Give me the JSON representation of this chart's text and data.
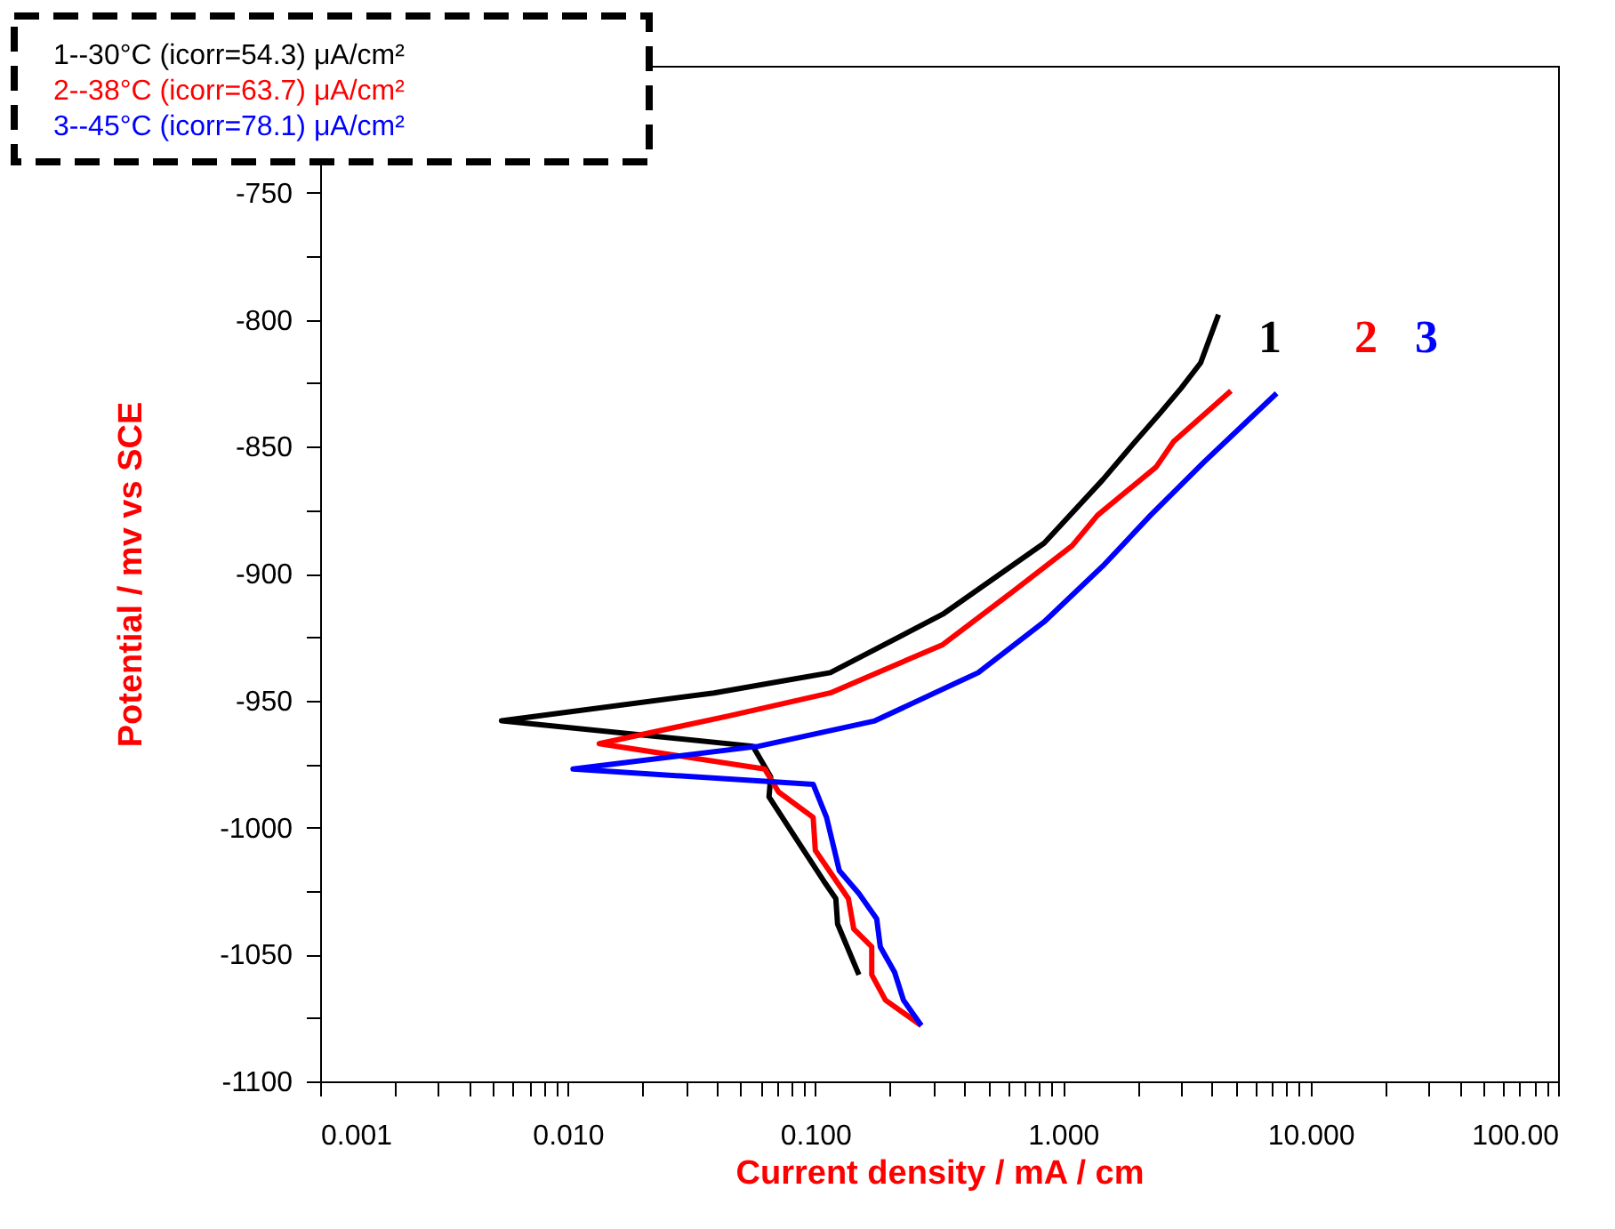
{
  "chart_data": {
    "type": "line",
    "xlabel": "Current density / mA / cm",
    "ylabel": "Potential / mv vs SCE",
    "log": "x",
    "legend": "top left",
    "marker": "none",
    "line_style": "solid",
    "grid": false,
    "xlim": [
      0.001,
      100
    ],
    "ylim": [
      -1100,
      -700
    ],
    "xticks": [
      {
        "value": 0.001,
        "label": "0.001"
      },
      {
        "value": 0.002,
        "label": null
      },
      {
        "value": 0.003,
        "label": null
      },
      {
        "value": 0.004,
        "label": null
      },
      {
        "value": 0.005,
        "label": null
      },
      {
        "value": 0.006,
        "label": null
      },
      {
        "value": 0.007,
        "label": null
      },
      {
        "value": 0.008,
        "label": null
      },
      {
        "value": 0.009,
        "label": null
      },
      {
        "value": 0.01,
        "label": "0.010"
      },
      {
        "value": 0.02,
        "label": null
      },
      {
        "value": 0.03,
        "label": null
      },
      {
        "value": 0.04,
        "label": null
      },
      {
        "value": 0.05,
        "label": null
      },
      {
        "value": 0.06,
        "label": null
      },
      {
        "value": 0.07,
        "label": null
      },
      {
        "value": 0.08,
        "label": null
      },
      {
        "value": 0.09,
        "label": null
      },
      {
        "value": 0.1,
        "label": "0.100"
      },
      {
        "value": 0.2,
        "label": null
      },
      {
        "value": 0.3,
        "label": null
      },
      {
        "value": 0.4,
        "label": null
      },
      {
        "value": 0.5,
        "label": null
      },
      {
        "value": 0.6,
        "label": null
      },
      {
        "value": 0.7,
        "label": null
      },
      {
        "value": 0.8,
        "label": null
      },
      {
        "value": 0.9,
        "label": null
      },
      {
        "value": 1,
        "label": "1.000"
      },
      {
        "value": 2,
        "label": null
      },
      {
        "value": 3,
        "label": null
      },
      {
        "value": 4,
        "label": null
      },
      {
        "value": 5,
        "label": null
      },
      {
        "value": 6,
        "label": null
      },
      {
        "value": 7,
        "label": null
      },
      {
        "value": 8,
        "label": null
      },
      {
        "value": 9,
        "label": null
      },
      {
        "value": 10,
        "label": "10.000"
      },
      {
        "value": 20,
        "label": null
      },
      {
        "value": 30,
        "label": null
      },
      {
        "value": 40,
        "label": null
      },
      {
        "value": 50,
        "label": null
      },
      {
        "value": 60,
        "label": null
      },
      {
        "value": 70,
        "label": null
      },
      {
        "value": 80,
        "label": null
      },
      {
        "value": 90,
        "label": null
      },
      {
        "value": 100,
        "label": "100.00"
      }
    ],
    "yticks": [
      -1100,
      {
        "value": -1075,
        "label": null
      },
      -1050,
      {
        "value": -1025,
        "label": null
      },
      -1000,
      {
        "value": -975,
        "label": null
      },
      -950,
      {
        "value": -925,
        "label": null
      },
      -900,
      {
        "value": -875,
        "label": null
      },
      -850,
      {
        "value": -825,
        "label": null
      },
      -800,
      {
        "value": -775,
        "label": null
      },
      -750
    ],
    "series": [
      {
        "name": "1--30°C   (icorr=54.3) μA/cm²",
        "color": "#000000",
        "x": [
          4.25,
          3.6,
          3.0,
          2.46,
          1.92,
          1.45,
          0.84,
          0.327,
          0.115,
          0.039,
          0.0054,
          0.056,
          0.066,
          0.065,
          0.087,
          0.108,
          0.121,
          0.123,
          0.15
        ],
        "values": [
          -798,
          -817,
          -827,
          -837,
          -849,
          -863,
          -888,
          -916,
          -939,
          -947,
          -958,
          -968,
          -980,
          -988,
          -1007,
          -1021,
          -1028,
          -1038,
          -1058
        ]
      },
      {
        "name": "2--38°C   (icorr=63.7) μA/cm²",
        "color": "#ff0000",
        "x": [
          4.77,
          2.8,
          2.38,
          1.38,
          1.09,
          0.63,
          0.327,
          0.115,
          0.045,
          0.0134,
          0.0625,
          0.071,
          0.098,
          0.1,
          0.136,
          0.143,
          0.169,
          0.169,
          0.192,
          0.268
        ],
        "values": [
          -828,
          -848,
          -858,
          -877,
          -889,
          -907,
          -928,
          -947,
          -956,
          -967,
          -977,
          -986,
          -996,
          -1009,
          -1028,
          -1040,
          -1047,
          -1058,
          -1068,
          -1078
        ]
      },
      {
        "name": "3--45°C   (icorr=78.1) μA/cm²",
        "color": "#0000ff",
        "x": [
          7.3,
          3.72,
          2.26,
          1.45,
          0.84,
          0.455,
          0.174,
          0.059,
          0.0105,
          0.098,
          0.111,
          0.125,
          0.15,
          0.177,
          0.183,
          0.209,
          0.227,
          0.268
        ],
        "values": [
          -829,
          -856,
          -877,
          -897,
          -919,
          -939,
          -958,
          -968,
          -977,
          -983,
          -996,
          -1017,
          -1026,
          -1036,
          -1047,
          -1057,
          -1068,
          -1078
        ]
      }
    ],
    "annotations": [
      "1",
      "2",
      "3"
    ]
  }
}
